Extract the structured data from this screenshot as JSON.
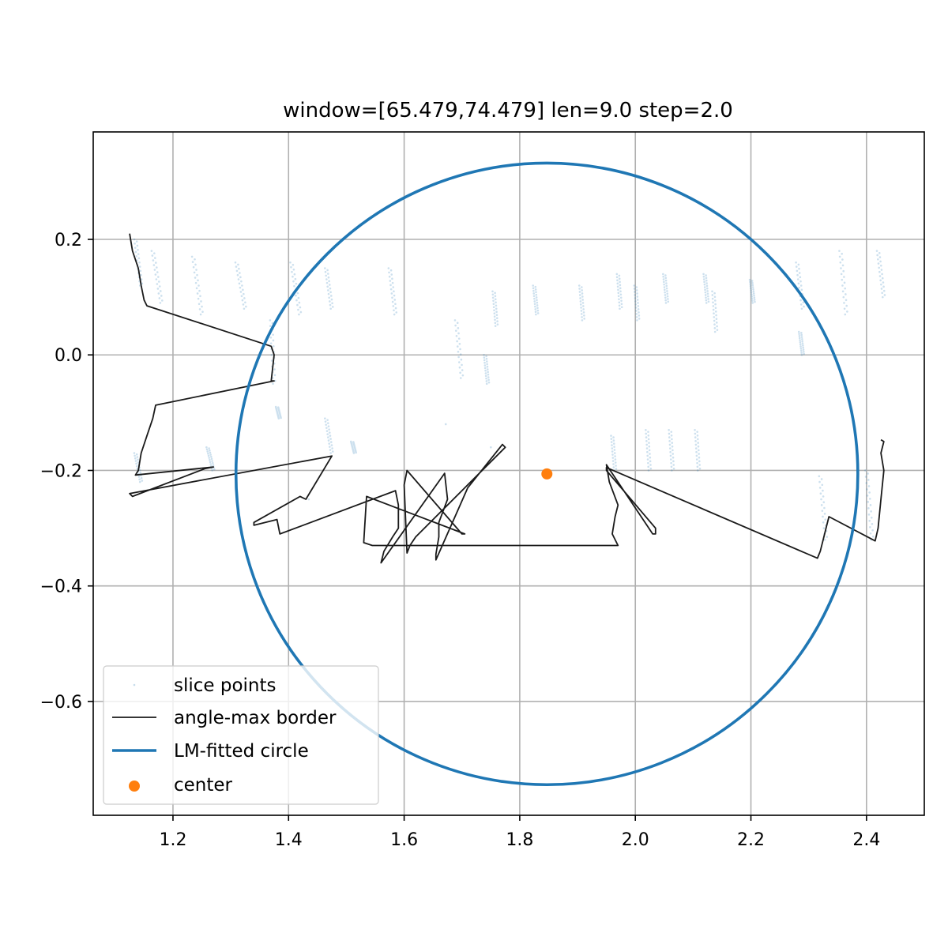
{
  "chart_data": {
    "type": "scatter",
    "title": "window=[65.479,74.479] len=9.0  step=2.0",
    "xlabel": "",
    "ylabel": "",
    "xlim": [
      1.062,
      2.5
    ],
    "ylim": [
      -0.797,
      0.386
    ],
    "grid": true,
    "legend_position": "lower-left",
    "x_ticks": [
      1.2,
      1.4,
      1.6,
      1.8,
      2.0,
      2.2,
      2.4
    ],
    "x_tick_labels": [
      "1.2",
      "1.4",
      "1.6",
      "1.8",
      "2.0",
      "2.2",
      "2.4"
    ],
    "y_ticks": [
      0.2,
      0.0,
      -0.2,
      -0.4,
      -0.6
    ],
    "y_tick_labels": [
      "0.2",
      "0.0",
      "−0.2",
      "−0.4",
      "−0.6"
    ],
    "series": [
      {
        "name": "slice points",
        "kind": "scatter",
        "color": "#1f77b4",
        "segments": [
          [
            1.135,
            0.2,
            1.145,
            0.12
          ],
          [
            1.165,
            0.18,
            1.18,
            0.09
          ],
          [
            1.235,
            0.17,
            1.25,
            0.07
          ],
          [
            1.31,
            0.16,
            1.325,
            0.08
          ],
          [
            1.405,
            0.16,
            1.42,
            0.07
          ],
          [
            1.465,
            0.15,
            1.475,
            0.08
          ],
          [
            1.575,
            0.15,
            1.585,
            0.07
          ],
          [
            1.69,
            0.06,
            1.7,
            -0.04
          ],
          [
            1.755,
            0.11,
            1.76,
            0.05
          ],
          [
            1.74,
            0.0,
            1.745,
            -0.05
          ],
          [
            1.825,
            0.12,
            1.83,
            0.07
          ],
          [
            1.905,
            0.12,
            1.91,
            0.06
          ],
          [
            1.97,
            0.14,
            1.975,
            0.08
          ],
          [
            2.0,
            0.12,
            2.005,
            0.06
          ],
          [
            2.05,
            0.14,
            2.055,
            0.09
          ],
          [
            2.12,
            0.14,
            2.125,
            0.09
          ],
          [
            2.135,
            0.11,
            2.14,
            0.04
          ],
          [
            2.2,
            0.13,
            2.205,
            0.09
          ],
          [
            2.28,
            0.16,
            2.29,
            0.08
          ],
          [
            2.355,
            0.18,
            2.365,
            0.07
          ],
          [
            2.42,
            0.18,
            2.43,
            0.1
          ],
          [
            2.285,
            0.04,
            2.29,
            0.0
          ],
          [
            1.96,
            -0.14,
            1.965,
            -0.2
          ],
          [
            2.02,
            -0.13,
            2.025,
            -0.2
          ],
          [
            2.06,
            -0.13,
            2.065,
            -0.2
          ],
          [
            2.105,
            -0.13,
            2.11,
            -0.2
          ],
          [
            2.32,
            -0.21,
            2.33,
            -0.32
          ],
          [
            2.4,
            -0.2,
            2.41,
            -0.32
          ],
          [
            1.135,
            -0.17,
            1.145,
            -0.22
          ],
          [
            1.26,
            -0.16,
            1.27,
            -0.2
          ],
          [
            1.38,
            -0.09,
            1.385,
            -0.11
          ],
          [
            1.465,
            -0.11,
            1.475,
            -0.17
          ],
          [
            1.51,
            -0.15,
            1.515,
            -0.17
          ],
          [
            1.37,
            0.06,
            1.375,
            -0.05
          ]
        ],
        "singles": [
          [
            1.75,
            -0.16
          ],
          [
            1.672,
            -0.12
          ],
          [
            1.435,
            -0.25
          ]
        ]
      },
      {
        "name": "angle-max border",
        "kind": "line",
        "color": "#1a1a1a",
        "points": [
          [
            1.125,
            0.21
          ],
          [
            1.13,
            0.18
          ],
          [
            1.14,
            0.15
          ],
          [
            1.145,
            0.12
          ],
          [
            1.15,
            0.095
          ],
          [
            1.155,
            0.085
          ],
          [
            1.37,
            0.015
          ],
          [
            1.375,
            0.0
          ],
          [
            1.37,
            -0.045
          ],
          [
            1.375,
            -0.045
          ],
          [
            1.17,
            -0.087
          ],
          [
            1.165,
            -0.11
          ],
          [
            1.155,
            -0.14
          ],
          [
            1.145,
            -0.17
          ],
          [
            1.14,
            -0.2
          ],
          [
            1.135,
            -0.208
          ],
          [
            1.27,
            -0.194
          ],
          [
            1.255,
            -0.197
          ],
          [
            1.13,
            -0.245
          ],
          [
            1.125,
            -0.24
          ],
          [
            1.475,
            -0.175
          ],
          [
            1.43,
            -0.25
          ],
          [
            1.42,
            -0.245
          ],
          [
            1.34,
            -0.29
          ],
          [
            1.34,
            -0.295
          ],
          [
            1.38,
            -0.285
          ],
          [
            1.385,
            -0.31
          ],
          [
            1.585,
            -0.235
          ],
          [
            1.59,
            -0.26
          ],
          [
            1.59,
            -0.3
          ],
          [
            1.58,
            -0.315
          ],
          [
            1.565,
            -0.34
          ],
          [
            1.56,
            -0.36
          ],
          [
            1.67,
            -0.205
          ],
          [
            1.675,
            -0.25
          ],
          [
            1.66,
            -0.29
          ],
          [
            1.66,
            -0.315
          ],
          [
            1.655,
            -0.345
          ],
          [
            1.655,
            -0.355
          ],
          [
            1.71,
            -0.23
          ],
          [
            1.77,
            -0.155
          ],
          [
            1.775,
            -0.16
          ],
          [
            1.62,
            -0.315
          ],
          [
            1.61,
            -0.33
          ],
          [
            1.605,
            -0.343
          ],
          [
            1.6,
            -0.225
          ],
          [
            1.605,
            -0.2
          ],
          [
            1.7,
            -0.31
          ],
          [
            1.705,
            -0.31
          ],
          [
            1.535,
            -0.245
          ],
          [
            1.53,
            -0.325
          ],
          [
            1.545,
            -0.33
          ],
          [
            1.555,
            -0.33
          ],
          [
            1.96,
            -0.33
          ],
          [
            1.965,
            -0.33
          ],
          [
            1.97,
            -0.33
          ],
          [
            1.96,
            -0.31
          ],
          [
            1.965,
            -0.28
          ],
          [
            1.97,
            -0.26
          ],
          [
            1.955,
            -0.22
          ],
          [
            1.95,
            -0.19
          ],
          [
            2.03,
            -0.31
          ],
          [
            2.035,
            -0.31
          ],
          [
            2.035,
            -0.3
          ],
          [
            1.95,
            -0.2
          ],
          [
            1.95,
            -0.195
          ],
          [
            2.315,
            -0.352
          ],
          [
            2.32,
            -0.34
          ],
          [
            2.325,
            -0.32
          ],
          [
            2.33,
            -0.3
          ],
          [
            2.335,
            -0.28
          ],
          [
            2.415,
            -0.322
          ],
          [
            2.42,
            -0.3
          ],
          [
            2.425,
            -0.25
          ],
          [
            2.43,
            -0.2
          ],
          [
            2.425,
            -0.17
          ],
          [
            2.43,
            -0.15
          ],
          [
            2.425,
            -0.147
          ]
        ]
      },
      {
        "name": "LM-fitted circle",
        "kind": "circle",
        "color": "#1f77b4",
        "center": [
          1.847,
          -0.206
        ],
        "radius": 0.538
      },
      {
        "name": "center",
        "kind": "point",
        "color": "#ff7f0e",
        "points": [
          [
            1.847,
            -0.206
          ]
        ]
      }
    ],
    "legend": [
      "slice points",
      "angle-max border",
      "LM-fitted circle",
      "center"
    ]
  }
}
